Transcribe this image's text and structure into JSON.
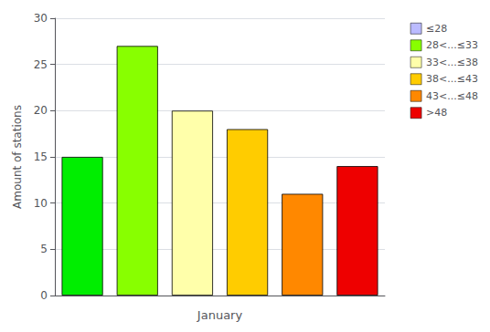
{
  "chart_data": {
    "type": "bar",
    "xlabel": "January",
    "ylabel": "Amount of stations",
    "categories": [
      null,
      null,
      null,
      null,
      null,
      null
    ],
    "values": [
      15,
      27,
      20,
      18,
      11,
      14
    ],
    "colors": [
      "#00ee00",
      "#88ff00",
      "#ffffaa",
      "#ffcc00",
      "#ff8800",
      "#ee0000"
    ],
    "series": [
      {
        "name": "≤28",
        "color": "#bbbbff"
      },
      {
        "name": "28<...≤33",
        "color": "#88ff00"
      },
      {
        "name": "33<...≤38",
        "color": "#ffffaa"
      },
      {
        "name": "38<...≤43",
        "color": "#ffcc00"
      },
      {
        "name": "43<...≤48",
        "color": "#ff8800"
      },
      {
        "name": ">48",
        "color": "#ee0000"
      }
    ],
    "ylim": [
      0,
      30
    ],
    "yticks": [
      0,
      5,
      10,
      15,
      20,
      25,
      30
    ],
    "grid": true,
    "legend": "upper right",
    "tick_labels": "y"
  }
}
